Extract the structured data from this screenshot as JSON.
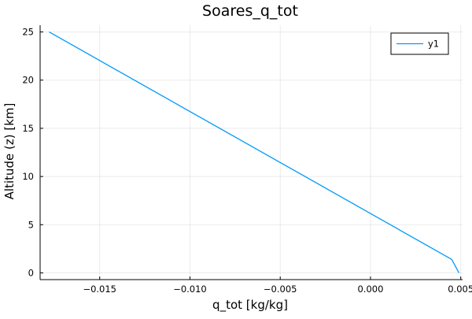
{
  "chart_data": {
    "type": "line",
    "title": "Soares_q_tot",
    "xlabel": "q_tot [kg/kg]",
    "ylabel": "Altitude (z) [km]",
    "xlim": [
      -0.0183,
      0.0051
    ],
    "ylim": [
      -0.7,
      25.7
    ],
    "xticks": [
      -0.015,
      -0.01,
      -0.005,
      0.0,
      0.005
    ],
    "xtick_labels": [
      "−0.015",
      "−0.010",
      "−0.005",
      "0.000",
      "0.005"
    ],
    "yticks": [
      0,
      5,
      10,
      15,
      20,
      25
    ],
    "ytick_labels": [
      "0",
      "5",
      "10",
      "15",
      "20",
      "25"
    ],
    "grid": true,
    "legend_position": "top-right",
    "series": [
      {
        "name": "y1",
        "color": "#009AFA",
        "x": [
          -0.0178,
          0.0045,
          0.0049
        ],
        "y": [
          25.0,
          1.4,
          0.0
        ]
      }
    ]
  }
}
